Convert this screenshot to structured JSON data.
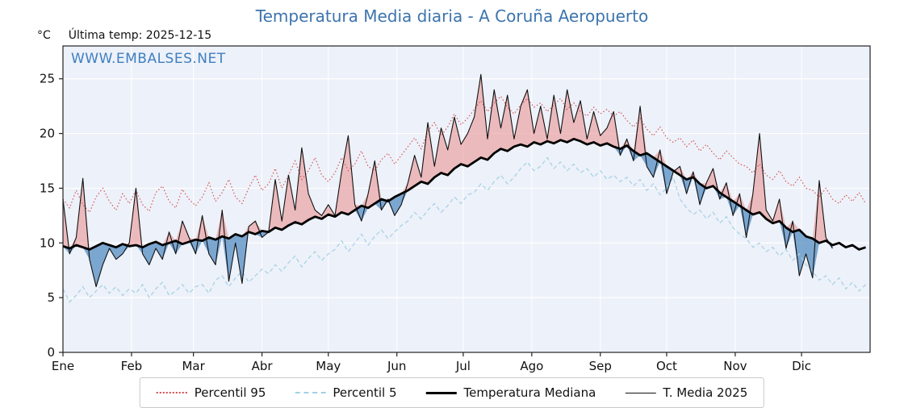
{
  "header": {
    "title": "Temperatura Media diaria - A Coruña Aeropuerto",
    "unit_label": "°C",
    "last_temp_label": "Última temp: 2025-12-15",
    "watermark": "WWW.EMBALSES.NET"
  },
  "colors": {
    "title_blue": "#3c74ad",
    "watermark_blue": "#3f7fc1",
    "plot_background": "#edf1f9",
    "grid": "#ffffff",
    "percentil95_red": "#d44a4a",
    "percentil5_blue": "#a3d0e4",
    "median_black": "#000000",
    "t2025_black": "#111111",
    "fill_above_pink": "#e98d8d",
    "fill_below_blue": "#5e93c5"
  },
  "chart_data": {
    "type": "line",
    "title": "Temperatura Media diaria - A Coruña Aeropuerto",
    "ylabel": "°C",
    "x_unit": "day_of_year",
    "sample_step_days": 3,
    "xlim": [
      0,
      365
    ],
    "ylim": [
      0,
      28
    ],
    "yticks": [
      0,
      5,
      10,
      15,
      20,
      25
    ],
    "grid": true,
    "plot_bg": "#edf1f9",
    "month_ticks": {
      "labels": [
        "Ene",
        "Feb",
        "Mar",
        "Abr",
        "May",
        "Jun",
        "Jul",
        "Ago",
        "Sep",
        "Oct",
        "Nov",
        "Dic"
      ],
      "day_starts": [
        0,
        31,
        59,
        90,
        120,
        151,
        181,
        212,
        243,
        273,
        304,
        334
      ]
    },
    "series": [
      {
        "name": "Percentil 95",
        "style": "dotted",
        "color": "#d44a4a",
        "values": [
          14.0,
          13.2,
          14.8,
          13.5,
          12.8,
          14.2,
          15.0,
          13.8,
          13.0,
          14.5,
          13.6,
          14.8,
          13.5,
          12.9,
          14.6,
          15.2,
          13.8,
          13.2,
          14.9,
          14.0,
          13.4,
          14.2,
          15.5,
          13.8,
          14.6,
          15.8,
          14.2,
          13.6,
          15.0,
          16.2,
          14.8,
          15.4,
          16.8,
          15.0,
          16.2,
          17.5,
          15.8,
          16.6,
          17.8,
          16.2,
          15.6,
          16.4,
          17.8,
          16.6,
          17.2,
          18.4,
          17.0,
          16.6,
          17.6,
          18.2,
          17.2,
          18.0,
          18.8,
          19.6,
          18.6,
          20.2,
          21.0,
          19.8,
          20.6,
          21.8,
          20.8,
          21.4,
          22.2,
          23.0,
          22.0,
          22.8,
          23.4,
          22.4,
          21.8,
          22.6,
          23.2,
          22.4,
          22.8,
          22.0,
          22.6,
          23.2,
          22.2,
          22.8,
          22.0,
          21.6,
          22.4,
          21.8,
          22.2,
          21.6,
          22.0,
          21.2,
          20.6,
          21.4,
          20.4,
          19.8,
          20.6,
          19.6,
          19.2,
          19.6,
          18.8,
          19.4,
          18.4,
          19.0,
          18.2,
          17.6,
          18.4,
          17.8,
          17.2,
          17.0,
          16.4,
          17.2,
          16.2,
          15.8,
          16.6,
          15.6,
          15.2,
          16.0,
          15.0,
          14.8,
          14.2,
          15.0,
          14.0,
          13.6,
          14.4,
          13.8,
          14.6,
          13.6
        ]
      },
      {
        "name": "Percentil 5",
        "style": "dashed",
        "color": "#a3d0e4",
        "values": [
          5.8,
          4.6,
          5.2,
          6.0,
          5.0,
          5.6,
          6.2,
          5.4,
          6.0,
          5.2,
          5.8,
          5.4,
          6.2,
          5.0,
          5.8,
          6.4,
          5.2,
          5.6,
          6.2,
          5.4,
          6.0,
          6.2,
          5.4,
          6.6,
          7.0,
          6.0,
          6.8,
          7.4,
          6.4,
          7.0,
          7.6,
          7.2,
          8.0,
          7.4,
          8.2,
          8.8,
          7.8,
          8.6,
          9.2,
          8.4,
          9.0,
          9.4,
          10.2,
          9.2,
          10.0,
          10.8,
          9.8,
          10.6,
          11.2,
          10.4,
          11.0,
          11.6,
          12.0,
          12.8,
          12.2,
          13.0,
          13.6,
          12.8,
          13.4,
          14.2,
          13.6,
          14.4,
          14.6,
          15.4,
          14.8,
          15.6,
          16.2,
          15.4,
          16.0,
          16.8,
          17.4,
          16.6,
          17.0,
          17.8,
          16.8,
          17.4,
          16.6,
          17.2,
          16.4,
          16.8,
          16.0,
          16.6,
          15.8,
          16.2,
          15.6,
          16.0,
          15.2,
          15.8,
          14.8,
          15.4,
          14.4,
          15.0,
          16.0,
          14.0,
          13.2,
          12.6,
          13.0,
          12.2,
          12.8,
          11.8,
          12.4,
          11.4,
          10.8,
          10.4,
          9.6,
          10.0,
          9.2,
          9.6,
          8.8,
          9.4,
          8.4,
          9.0,
          8.0,
          7.4,
          6.6,
          7.0,
          6.2,
          6.8,
          5.8,
          6.4,
          5.6,
          6.2
        ]
      },
      {
        "name": "Temperatura Mediana",
        "style": "solid-thick",
        "color": "#000000",
        "values": [
          9.7,
          9.5,
          9.8,
          9.6,
          9.4,
          9.7,
          10.0,
          9.8,
          9.6,
          9.9,
          9.7,
          9.8,
          9.6,
          9.9,
          10.1,
          9.8,
          10.0,
          10.2,
          9.9,
          10.1,
          10.3,
          10.2,
          10.5,
          10.3,
          10.6,
          10.4,
          10.8,
          10.6,
          11.0,
          10.8,
          11.1,
          11.0,
          11.4,
          11.2,
          11.6,
          11.9,
          11.7,
          12.1,
          12.4,
          12.2,
          12.6,
          12.4,
          12.8,
          12.6,
          13.0,
          13.4,
          13.2,
          13.6,
          14.0,
          13.8,
          14.2,
          14.5,
          14.8,
          15.2,
          15.6,
          15.4,
          16.0,
          16.4,
          16.2,
          16.8,
          17.2,
          17.0,
          17.4,
          17.8,
          17.6,
          18.2,
          18.6,
          18.4,
          18.8,
          19.0,
          18.8,
          19.2,
          19.0,
          19.3,
          19.1,
          19.4,
          19.2,
          19.5,
          19.3,
          19.0,
          19.2,
          18.9,
          19.1,
          18.8,
          18.6,
          18.9,
          18.4,
          18.0,
          18.2,
          17.8,
          17.4,
          17.0,
          16.6,
          16.2,
          15.8,
          16.0,
          15.4,
          15.0,
          15.2,
          14.6,
          14.2,
          13.8,
          13.4,
          13.0,
          12.6,
          12.8,
          12.2,
          11.8,
          12.0,
          11.4,
          11.0,
          11.2,
          10.6,
          10.4,
          10.0,
          10.2,
          9.8,
          10.0,
          9.6,
          9.8,
          9.4,
          9.6
        ]
      },
      {
        "name": "T. Media 2025",
        "style": "solid-thin",
        "color": "#111111",
        "last_date": "2025-12-15",
        "values": [
          14.0,
          9.0,
          10.5,
          15.9,
          8.5,
          6.0,
          8.0,
          9.5,
          8.5,
          9.0,
          10.0,
          15.0,
          9.0,
          8.0,
          9.5,
          8.5,
          11.0,
          9.0,
          12.0,
          10.5,
          9.0,
          12.5,
          9.0,
          8.0,
          13.0,
          6.5,
          10.0,
          6.3,
          11.5,
          12.0,
          10.5,
          11.0,
          15.8,
          12.0,
          16.2,
          13.0,
          18.7,
          14.5,
          13.0,
          12.5,
          13.5,
          12.5,
          16.5,
          19.8,
          13.5,
          12.0,
          14.5,
          17.5,
          13.0,
          14.0,
          12.5,
          13.5,
          15.5,
          18.0,
          16.0,
          21.0,
          17.0,
          20.5,
          18.5,
          21.5,
          19.0,
          20.0,
          21.5,
          25.4,
          19.5,
          24.0,
          20.5,
          23.5,
          19.5,
          22.5,
          24.0,
          20.0,
          22.5,
          19.5,
          23.5,
          20.0,
          24.0,
          21.0,
          23.0,
          19.5,
          22.0,
          19.8,
          20.5,
          22.0,
          18.0,
          19.5,
          17.5,
          22.5,
          17.0,
          16.0,
          18.5,
          14.5,
          16.5,
          17.0,
          14.5,
          16.5,
          13.5,
          15.5,
          16.8,
          14.0,
          15.5,
          12.5,
          14.5,
          10.5,
          14.5,
          20.0,
          13.0,
          12.0,
          14.0,
          9.5,
          12.0,
          7.0,
          9.0,
          6.8,
          15.7,
          10.5,
          9.5
        ]
      }
    ],
    "fills": {
      "above_color": "#e98d8d",
      "above_opacity": 0.55,
      "below_color": "#5e93c5",
      "below_opacity": 0.8
    },
    "legend": {
      "position": "bottom",
      "items": [
        "Percentil 95",
        "Percentil 5",
        "Temperatura Mediana",
        "T. Media 2025"
      ]
    }
  }
}
